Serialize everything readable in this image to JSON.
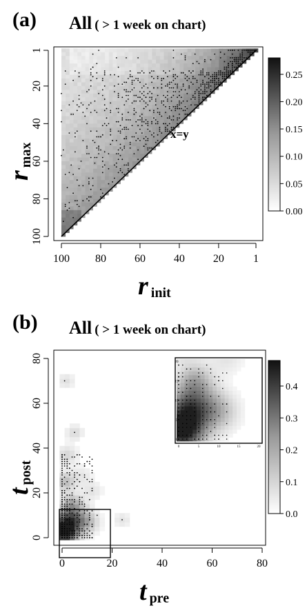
{
  "chart_data": [
    {
      "type": "heatmap",
      "panel_label": "(a)",
      "title": "All",
      "title_suffix": "( > 1 week on chart)",
      "xlabel": {
        "main": "r",
        "sub": "init"
      },
      "ylabel": {
        "main": "r",
        "sub": "max"
      },
      "x_reversed": true,
      "y_reversed": true,
      "xlim": [
        100,
        1
      ],
      "ylim": [
        100,
        1
      ],
      "x_ticks": [
        100,
        80,
        60,
        40,
        20,
        1
      ],
      "y_ticks": [
        1,
        20,
        40,
        60,
        80,
        100
      ],
      "annotation": "x=y",
      "colorbar": {
        "min": 0.0,
        "max": 0.28,
        "ticks": [
          "0.25",
          "0.20",
          "0.15",
          "0.10",
          "0.05",
          "0.00"
        ]
      },
      "note": "density is supported only on the triangle r_max <= r_init (below the x=y diagonal toward rank 1); points mark observed songs"
    },
    {
      "type": "heatmap",
      "panel_label": "(b)",
      "title": "All",
      "title_suffix": "( > 1 week on chart)",
      "xlabel": {
        "main": "t",
        "sub": "pre"
      },
      "ylabel": {
        "main": "t",
        "sub": "post"
      },
      "xlim": [
        0,
        80
      ],
      "ylim": [
        0,
        80
      ],
      "x_ticks": [
        0,
        20,
        40,
        60,
        80
      ],
      "y_ticks": [
        0,
        20,
        40,
        60,
        80
      ],
      "colorbar": {
        "min": 0.0,
        "max": 0.48,
        "ticks": [
          "0.4",
          "0.3",
          "0.2",
          "0.1",
          "0.0"
        ]
      },
      "inset": {
        "xlim": [
          0,
          20
        ],
        "ylim": [
          0,
          20
        ]
      },
      "note": "mass concentrated near t_pre = 0, t_post = 0 with sparse points up to t_post about 70"
    }
  ]
}
